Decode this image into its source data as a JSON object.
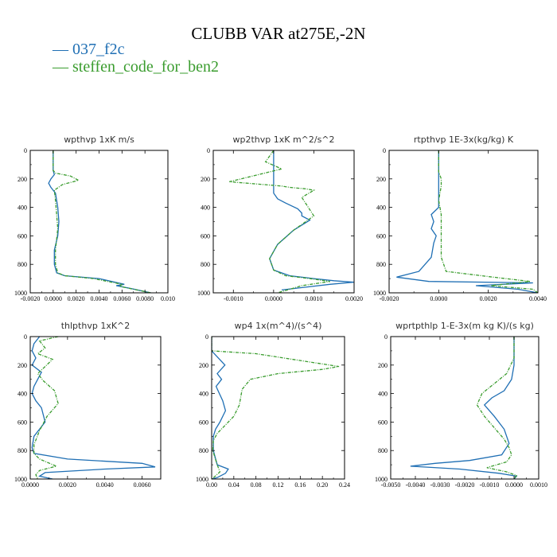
{
  "page": {
    "title": "CLUBB VAR at275E,-2N"
  },
  "legend": [
    {
      "name": "037_f2c",
      "color": "#1f6fb4",
      "label": "— 037_f2c"
    },
    {
      "name": "steffen_code_for_ben2",
      "color": "#3a9c2e",
      "label": "— steffen_code_for_ben2"
    }
  ],
  "chart_data": [
    {
      "type": "line",
      "title": "wpthvp   1xK  m/s",
      "xlim": [
        -0.002,
        0.01
      ],
      "ylim": [
        1000,
        0
      ],
      "y_inverted": true,
      "grid": false,
      "xticks": [
        -0.002,
        0,
        0.002,
        0.004,
        0.006,
        0.008,
        0.01
      ],
      "xtick_labels": [
        "-0.0020",
        "0.0000",
        "0.0020",
        "0.0040",
        "0.0060",
        "0.0080",
        "0.010"
      ],
      "yticks": [
        0,
        200,
        400,
        600,
        800,
        1000
      ],
      "ytick_labels": [
        "0",
        "200",
        "400",
        "600",
        "800",
        "1000"
      ],
      "series": [
        {
          "name": "037_f2c",
          "color": "#1f6fb4",
          "dash": false,
          "x": [
            0,
            0,
            0,
            0.0001,
            -0.0002,
            -0.0004,
            -0.0002,
            0.0002,
            0.0004,
            0.0005,
            0.0004,
            0.0001,
            0.0001,
            0.0003,
            0.001,
            0.004,
            0.0062,
            0.0055,
            0.0068,
            0.0085
          ],
          "y": [
            0,
            100,
            140,
            170,
            200,
            230,
            260,
            300,
            400,
            500,
            600,
            700,
            800,
            860,
            880,
            900,
            940,
            950,
            970,
            1000
          ]
        },
        {
          "name": "steffen_code_for_ben2",
          "color": "#3a9c2e",
          "dash": true,
          "x": [
            0,
            0,
            0,
            0.0002,
            0.0015,
            0.0022,
            0.0008,
            0.0001,
            0.0002,
            0.0003,
            0.0004,
            0.0002,
            0.0002,
            0.0004,
            0.001,
            0.0035,
            0.006,
            0.0058,
            0.007,
            0.0085
          ],
          "y": [
            0,
            100,
            140,
            160,
            180,
            210,
            240,
            280,
            350,
            450,
            550,
            700,
            800,
            860,
            880,
            900,
            940,
            955,
            975,
            1000
          ]
        }
      ]
    },
    {
      "type": "line",
      "title": "wp2thvp   1xK  m^2/s^2",
      "xlim": [
        -0.0015,
        0.002
      ],
      "ylim": [
        1000,
        0
      ],
      "y_inverted": true,
      "grid": false,
      "xticks": [
        -0.001,
        0,
        0.001,
        0.002
      ],
      "xtick_labels": [
        "-0.0010",
        "0.0000",
        "0.0010",
        "0.0020"
      ],
      "yticks": [
        0,
        200,
        400,
        600,
        800,
        1000
      ],
      "ytick_labels": [
        "0",
        "200",
        "400",
        "600",
        "800",
        "1000"
      ],
      "series": [
        {
          "name": "037_f2c",
          "color": "#1f6fb4",
          "dash": false,
          "x": [
            0,
            0,
            0,
            0,
            0.0001,
            0.0003,
            0.0006,
            0.0007,
            0.0007,
            0.0009,
            0.0005,
            0.0001,
            -0.0001,
            0,
            0.0004,
            0.001,
            0.0015,
            0.002,
            0.0014,
            0.0002
          ],
          "y": [
            0,
            100,
            200,
            300,
            340,
            370,
            410,
            440,
            460,
            490,
            560,
            660,
            760,
            840,
            880,
            900,
            915,
            925,
            940,
            980
          ]
        },
        {
          "name": "steffen_code_for_ben2",
          "color": "#3a9c2e",
          "dash": true,
          "x": [
            0,
            -0.0002,
            0.0002,
            -0.0011,
            0.0002,
            0.0004,
            0.0008,
            0.001,
            0.0007,
            0.001,
            0.0008,
            0.0005,
            0.0001,
            -0.0001,
            0,
            0.0003,
            0.0009,
            0.0014,
            0.0007,
            0.0001
          ],
          "y": [
            0,
            80,
            130,
            220,
            250,
            260,
            270,
            280,
            330,
            460,
            500,
            560,
            660,
            760,
            840,
            880,
            900,
            920,
            950,
            1000
          ]
        }
      ]
    },
    {
      "type": "line",
      "title": "rtpthvp   1E-3x(kg/kg) K",
      "xlim": [
        -0.002,
        0.004
      ],
      "ylim": [
        1000,
        0
      ],
      "y_inverted": true,
      "grid": false,
      "xticks": [
        -0.002,
        0,
        0.002,
        0.004
      ],
      "xtick_labels": [
        "-0.0020",
        "0.0000",
        "0.0020",
        "0.0040"
      ],
      "yticks": [
        0,
        200,
        400,
        600,
        800,
        1000
      ],
      "ytick_labels": [
        "0",
        "200",
        "400",
        "600",
        "800",
        "1000"
      ],
      "series": [
        {
          "name": "037_f2c",
          "color": "#1f6fb4",
          "dash": false,
          "x": [
            0,
            0,
            0,
            -0.0003,
            -0.0002,
            -0.0003,
            -0.0001,
            -0.0002,
            -0.0003,
            -0.0008,
            -0.0017,
            -0.0004,
            0.0038,
            0.0015,
            0.0032,
            0.004
          ],
          "y": [
            0,
            200,
            400,
            450,
            500,
            550,
            600,
            650,
            750,
            850,
            890,
            920,
            930,
            950,
            975,
            1000
          ]
        },
        {
          "name": "steffen_code_for_ben2",
          "color": "#3a9c2e",
          "dash": true,
          "x": [
            0,
            0,
            0.0001,
            0.0001,
            0,
            0.0001,
            0.0001,
            0.0001,
            0.0001,
            0.0003,
            0.0022,
            0.0037,
            0.0021,
            0.0038,
            0.004
          ],
          "y": [
            0,
            150,
            200,
            250,
            350,
            450,
            550,
            650,
            750,
            850,
            890,
            920,
            950,
            975,
            1000
          ]
        }
      ]
    },
    {
      "type": "line",
      "title": "thlpthvp   1xK^2",
      "xlim": [
        0,
        0.007
      ],
      "ylim": [
        1000,
        0
      ],
      "y_inverted": true,
      "grid": false,
      "xticks": [
        0,
        0.002,
        0.004,
        0.006
      ],
      "xtick_labels": [
        "0.0000",
        "0.0020",
        "0.0040",
        "0.0060"
      ],
      "yticks": [
        0,
        200,
        400,
        600,
        800,
        1000
      ],
      "ytick_labels": [
        "0",
        "200",
        "400",
        "600",
        "800",
        "1000"
      ],
      "series": [
        {
          "name": "037_f2c",
          "color": "#1f6fb4",
          "dash": false,
          "x": [
            0.0005,
            0.0002,
            0.0001,
            0.0003,
            0.0001,
            0.0006,
            0.0004,
            0.0002,
            0.0001,
            0.0003,
            0.0006,
            0.0008,
            0.0002,
            0.0001,
            0.0002,
            0.002,
            0.006,
            0.0067,
            0.004,
            0.0008,
            0.0005,
            0.0012
          ],
          "y": [
            0,
            50,
            100,
            150,
            200,
            250,
            300,
            350,
            400,
            450,
            500,
            600,
            700,
            780,
            820,
            860,
            890,
            915,
            930,
            955,
            980,
            1000
          ]
        },
        {
          "name": "steffen_code_for_ben2",
          "color": "#3a9c2e",
          "dash": true,
          "x": [
            0.0015,
            0.0005,
            0.0008,
            0.0004,
            0.0012,
            0.0008,
            0.0004,
            0.0007,
            0.0013,
            0.0015,
            0.0009,
            0.0005,
            0.0002,
            0.0002,
            0.0005,
            0.0014,
            0.0005,
            0.0003,
            0.0004
          ],
          "y": [
            0,
            30,
            80,
            120,
            160,
            210,
            260,
            310,
            380,
            470,
            560,
            660,
            760,
            820,
            860,
            910,
            940,
            970,
            1000
          ]
        }
      ]
    },
    {
      "type": "line",
      "title": "wp4   1x(m^4)/(s^4)",
      "xlim": [
        0,
        0.24
      ],
      "ylim": [
        1000,
        0
      ],
      "y_inverted": true,
      "grid": false,
      "xticks": [
        0,
        0.04,
        0.08,
        0.12,
        0.16,
        0.2,
        0.24
      ],
      "xtick_labels": [
        "0.00",
        "0.04",
        "0.08",
        "0.12",
        "0.16",
        "0.20",
        "0.24"
      ],
      "yticks": [
        0,
        200,
        400,
        600,
        800,
        1000
      ],
      "ytick_labels": [
        "0",
        "200",
        "400",
        "600",
        "800",
        "1000"
      ],
      "series": [
        {
          "name": "037_f2c",
          "color": "#1f6fb4",
          "dash": false,
          "x": [
            0,
            0,
            0.012,
            0.024,
            0.01,
            0.018,
            0.008,
            0.014,
            0.02,
            0.025,
            0.015,
            0.007,
            0.003,
            0.003,
            0.01,
            0.03,
            0.025,
            0.01,
            0
          ],
          "y": [
            0,
            100,
            150,
            200,
            260,
            300,
            350,
            400,
            450,
            520,
            600,
            650,
            700,
            800,
            900,
            930,
            960,
            990,
            1000
          ]
        },
        {
          "name": "steffen_code_for_ben2",
          "color": "#3a9c2e",
          "dash": true,
          "x": [
            0,
            0,
            0.08,
            0.23,
            0.2,
            0.12,
            0.07,
            0.055,
            0.05,
            0.04,
            0.025,
            0.01,
            0.003,
            0.002,
            0.01,
            0.015,
            0.005,
            0
          ],
          "y": [
            0,
            100,
            120,
            210,
            230,
            260,
            300,
            370,
            480,
            560,
            620,
            680,
            730,
            800,
            900,
            950,
            985,
            1000
          ]
        }
      ]
    },
    {
      "type": "line",
      "title": "wprtpthlp   1-E-3x(m kg K)/(s kg)",
      "xlim": [
        -0.005,
        0.001
      ],
      "ylim": [
        1000,
        0
      ],
      "y_inverted": true,
      "grid": false,
      "xticks": [
        -0.005,
        -0.004,
        -0.003,
        -0.002,
        -0.001,
        0,
        0.001
      ],
      "xtick_labels": [
        "-0.0050",
        "-0.0040",
        "-0.0030",
        "-0.0020",
        "-0.0010",
        "0.0000",
        "0.0010"
      ],
      "yticks": [
        0,
        200,
        400,
        600,
        800,
        1000
      ],
      "ytick_labels": [
        "0",
        "200",
        "400",
        "600",
        "800",
        "1000"
      ],
      "series": [
        {
          "name": "037_f2c",
          "color": "#1f6fb4",
          "dash": false,
          "x": [
            0,
            0,
            -0.0001,
            -0.0004,
            -0.0009,
            -0.0012,
            -0.0008,
            -0.0004,
            -0.0002,
            -0.0005,
            -0.0018,
            -0.0032,
            -0.0042,
            -0.0022,
            -0.0006,
            0.0001,
            0
          ],
          "y": [
            0,
            200,
            300,
            380,
            430,
            480,
            560,
            650,
            750,
            830,
            870,
            890,
            910,
            930,
            960,
            980,
            1000
          ]
        },
        {
          "name": "steffen_code_for_ben2",
          "color": "#3a9c2e",
          "dash": true,
          "x": [
            0,
            0,
            -0.0003,
            -0.0008,
            -0.0013,
            -0.0015,
            -0.0012,
            -0.0008,
            -0.0004,
            -0.0002,
            -0.0001,
            -0.0003,
            -0.0011,
            -0.0003,
            0.0001,
            0
          ],
          "y": [
            0,
            150,
            260,
            330,
            400,
            480,
            560,
            640,
            720,
            780,
            830,
            880,
            920,
            950,
            975,
            1000
          ]
        }
      ]
    }
  ]
}
